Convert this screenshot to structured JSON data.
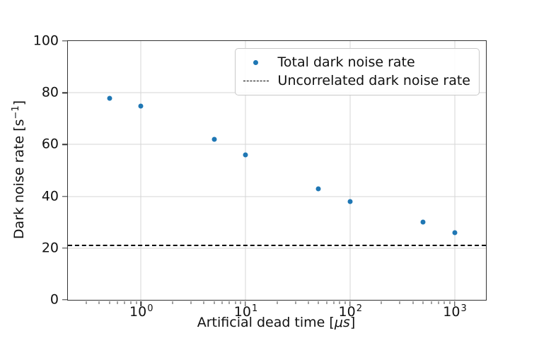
{
  "figure": {
    "background": "#ffffff"
  },
  "chart_data": {
    "type": "scatter",
    "title": "",
    "xlabel": "Artificial dead time [μs]",
    "xlabel_parts": {
      "pre": "Artificial dead time [",
      "unit_italic": "μs",
      "post": "]"
    },
    "ylabel": "Dark noise rate [s⁻¹]",
    "ylabel_parts": {
      "pre": "Dark noise rate [s",
      "sup": "−1",
      "post": "]"
    },
    "x_scale": "log",
    "y_scale": "linear",
    "xlim": [
      0.2,
      2000
    ],
    "ylim": [
      0,
      100
    ],
    "x_major_ticks": [
      1,
      10,
      100,
      1000
    ],
    "x_major_tick_labels": [
      "10⁰",
      "10¹",
      "10²",
      "10³"
    ],
    "y_ticks": [
      0,
      20,
      40,
      60,
      80,
      100
    ],
    "grid": true,
    "colors": {
      "marker": "#1f77b4",
      "hline": "#000000",
      "grid": "#d6d6d6",
      "spine": "#333333",
      "text": "#111111"
    },
    "legend": {
      "position": "upper-right",
      "items": [
        "Total dark noise rate",
        "Uncorrelated dark noise rate"
      ]
    },
    "series": [
      {
        "name": "Total dark noise rate",
        "type": "scatter",
        "marker": "circle",
        "color": "#1f77b4",
        "x": [
          0.5,
          1,
          5,
          10,
          50,
          100,
          500,
          1000
        ],
        "y": [
          78,
          75,
          62,
          56,
          43,
          38,
          30,
          26
        ]
      },
      {
        "name": "Uncorrelated dark noise rate",
        "type": "hline",
        "linestyle": "dashed",
        "color": "#000000",
        "y": 21
      }
    ]
  }
}
